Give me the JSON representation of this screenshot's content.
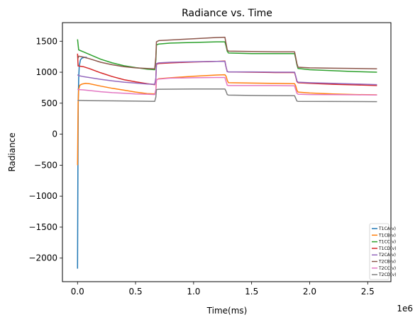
{
  "chart_data": {
    "type": "line",
    "title": "Radiance vs. Time",
    "xlabel": "Time(ms)",
    "ylabel": "Radiance",
    "x_multiplier_label": "1e6",
    "xlim": [
      -0.13,
      2.7
    ],
    "ylim": [
      -2380,
      1800
    ],
    "xticks": [
      0.0,
      0.5,
      1.0,
      1.5,
      2.0,
      2.5
    ],
    "xtick_labels": [
      "0.0",
      "0.5",
      "1.0",
      "1.5",
      "2.0",
      "2.5"
    ],
    "yticks": [
      -2000,
      -1500,
      -1000,
      -500,
      0,
      500,
      1000,
      1500
    ],
    "ytick_labels": [
      "−2000",
      "−1500",
      "−1000",
      "−500",
      "0",
      "500",
      "1000",
      "1500"
    ],
    "grid": false,
    "legend_position": "lower-right",
    "series": [
      {
        "name": "T1CA(v)",
        "color": "#1f77b4",
        "x": [
          0.0,
          0.003,
          0.006,
          0.01,
          0.015,
          0.025,
          0.04,
          0.06,
          0.08
        ],
        "y": [
          -2170,
          -600,
          500,
          900,
          1100,
          1200,
          1230,
          1240,
          1240
        ]
      },
      {
        "name": "T1CB(v)",
        "color": "#ff7f0e",
        "x": [
          0.0,
          0.005,
          0.01,
          0.02,
          0.04,
          0.07,
          0.1,
          0.2,
          0.3,
          0.4,
          0.5,
          0.6,
          0.665,
          0.675,
          0.68,
          0.7,
          0.8,
          1.0,
          1.2,
          1.27,
          1.28,
          1.29,
          1.3,
          1.5,
          1.7,
          1.87,
          1.88,
          1.89,
          1.9,
          2.0,
          2.2,
          2.4,
          2.58
        ],
        "y": [
          -500,
          500,
          720,
          790,
          810,
          820,
          815,
          775,
          740,
          710,
          680,
          655,
          650,
          700,
          875,
          895,
          910,
          935,
          955,
          960,
          935,
          870,
          830,
          825,
          820,
          815,
          780,
          710,
          680,
          665,
          650,
          640,
          635
        ]
      },
      {
        "name": "T1CC(v)",
        "color": "#2ca02c",
        "x": [
          0.0,
          0.01,
          0.05,
          0.1,
          0.2,
          0.3,
          0.4,
          0.5,
          0.6,
          0.665,
          0.675,
          0.68,
          0.7,
          0.8,
          1.0,
          1.2,
          1.27,
          1.28,
          1.29,
          1.3,
          1.5,
          1.7,
          1.87,
          1.88,
          1.89,
          1.9,
          2.0,
          2.2,
          2.4,
          2.58
        ],
        "y": [
          1530,
          1360,
          1330,
          1290,
          1210,
          1150,
          1105,
          1075,
          1050,
          1040,
          1200,
          1440,
          1455,
          1470,
          1480,
          1490,
          1490,
          1420,
          1340,
          1310,
          1300,
          1300,
          1300,
          1220,
          1120,
          1060,
          1040,
          1025,
          1010,
          1000
        ]
      },
      {
        "name": "T1CD(v)",
        "color": "#d62728",
        "x": [
          0.0,
          0.005,
          0.01,
          0.05,
          0.1,
          0.2,
          0.3,
          0.4,
          0.5,
          0.6,
          0.665,
          0.675,
          0.68,
          0.7,
          0.8,
          1.0,
          1.2,
          1.27,
          1.28,
          1.29,
          1.3,
          1.5,
          1.7,
          1.87,
          1.88,
          1.89,
          1.9,
          2.0,
          2.2,
          2.4,
          2.58
        ],
        "y": [
          1300,
          1100,
          1100,
          1090,
          1060,
          990,
          930,
          880,
          845,
          815,
          800,
          900,
          1130,
          1140,
          1150,
          1165,
          1175,
          1180,
          1080,
          1010,
          1005,
          1000,
          995,
          995,
          930,
          850,
          830,
          820,
          805,
          795,
          785
        ]
      },
      {
        "name": "T2CA(v)",
        "color": "#9467bd",
        "x": [
          0.0,
          0.01,
          0.05,
          0.1,
          0.2,
          0.3,
          0.4,
          0.5,
          0.6,
          0.665,
          0.675,
          0.68,
          0.7,
          0.8,
          1.0,
          1.2,
          1.27,
          1.28,
          1.29,
          1.3,
          1.5,
          1.7,
          1.87,
          1.88,
          1.89,
          1.9,
          2.0,
          2.2,
          2.4,
          2.58
        ],
        "y": [
          960,
          945,
          930,
          915,
          885,
          860,
          840,
          825,
          810,
          805,
          900,
          1140,
          1150,
          1160,
          1170,
          1175,
          1175,
          1080,
          1010,
          1005,
          1005,
          1000,
          1000,
          940,
          860,
          840,
          830,
          820,
          810,
          800
        ]
      },
      {
        "name": "T2CB(v)",
        "color": "#8c564b",
        "x": [
          0.0,
          0.005,
          0.01,
          0.05,
          0.1,
          0.2,
          0.3,
          0.4,
          0.5,
          0.6,
          0.665,
          0.675,
          0.68,
          0.7,
          0.8,
          1.0,
          1.2,
          1.27,
          1.28,
          1.29,
          1.3,
          1.5,
          1.7,
          1.87,
          1.88,
          1.89,
          1.9,
          2.0,
          2.2,
          2.4,
          2.58
        ],
        "y": [
          1230,
          1230,
          1260,
          1245,
          1220,
          1160,
          1120,
          1090,
          1070,
          1060,
          1055,
          1250,
          1490,
          1510,
          1520,
          1540,
          1560,
          1565,
          1460,
          1360,
          1340,
          1335,
          1330,
          1330,
          1240,
          1140,
          1080,
          1070,
          1065,
          1060,
          1055
        ]
      },
      {
        "name": "T2CC(v)",
        "color": "#e377c2",
        "x": [
          0.0,
          0.01,
          0.05,
          0.1,
          0.2,
          0.3,
          0.4,
          0.5,
          0.6,
          0.665,
          0.675,
          0.68,
          0.7,
          0.8,
          1.0,
          1.2,
          1.27,
          1.28,
          1.29,
          1.3,
          1.5,
          1.7,
          1.87,
          1.88,
          1.89,
          1.9,
          2.0,
          2.2,
          2.4,
          2.58
        ],
        "y": [
          730,
          720,
          715,
          705,
          685,
          670,
          660,
          650,
          645,
          640,
          720,
          880,
          890,
          905,
          910,
          915,
          915,
          850,
          790,
          785,
          785,
          785,
          780,
          720,
          660,
          645,
          640,
          638,
          635,
          632
        ]
      },
      {
        "name": "T2CD(v)",
        "color": "#7f7f7f",
        "x": [
          0.0,
          0.01,
          0.1,
          0.3,
          0.5,
          0.665,
          0.675,
          0.68,
          0.7,
          1.0,
          1.27,
          1.28,
          1.29,
          1.3,
          1.5,
          1.87,
          1.88,
          1.89,
          1.9,
          2.2,
          2.58
        ],
        "y": [
          545,
          545,
          542,
          538,
          533,
          530,
          600,
          720,
          725,
          730,
          730,
          690,
          640,
          630,
          625,
          620,
          580,
          535,
          530,
          528,
          525
        ]
      }
    ]
  }
}
